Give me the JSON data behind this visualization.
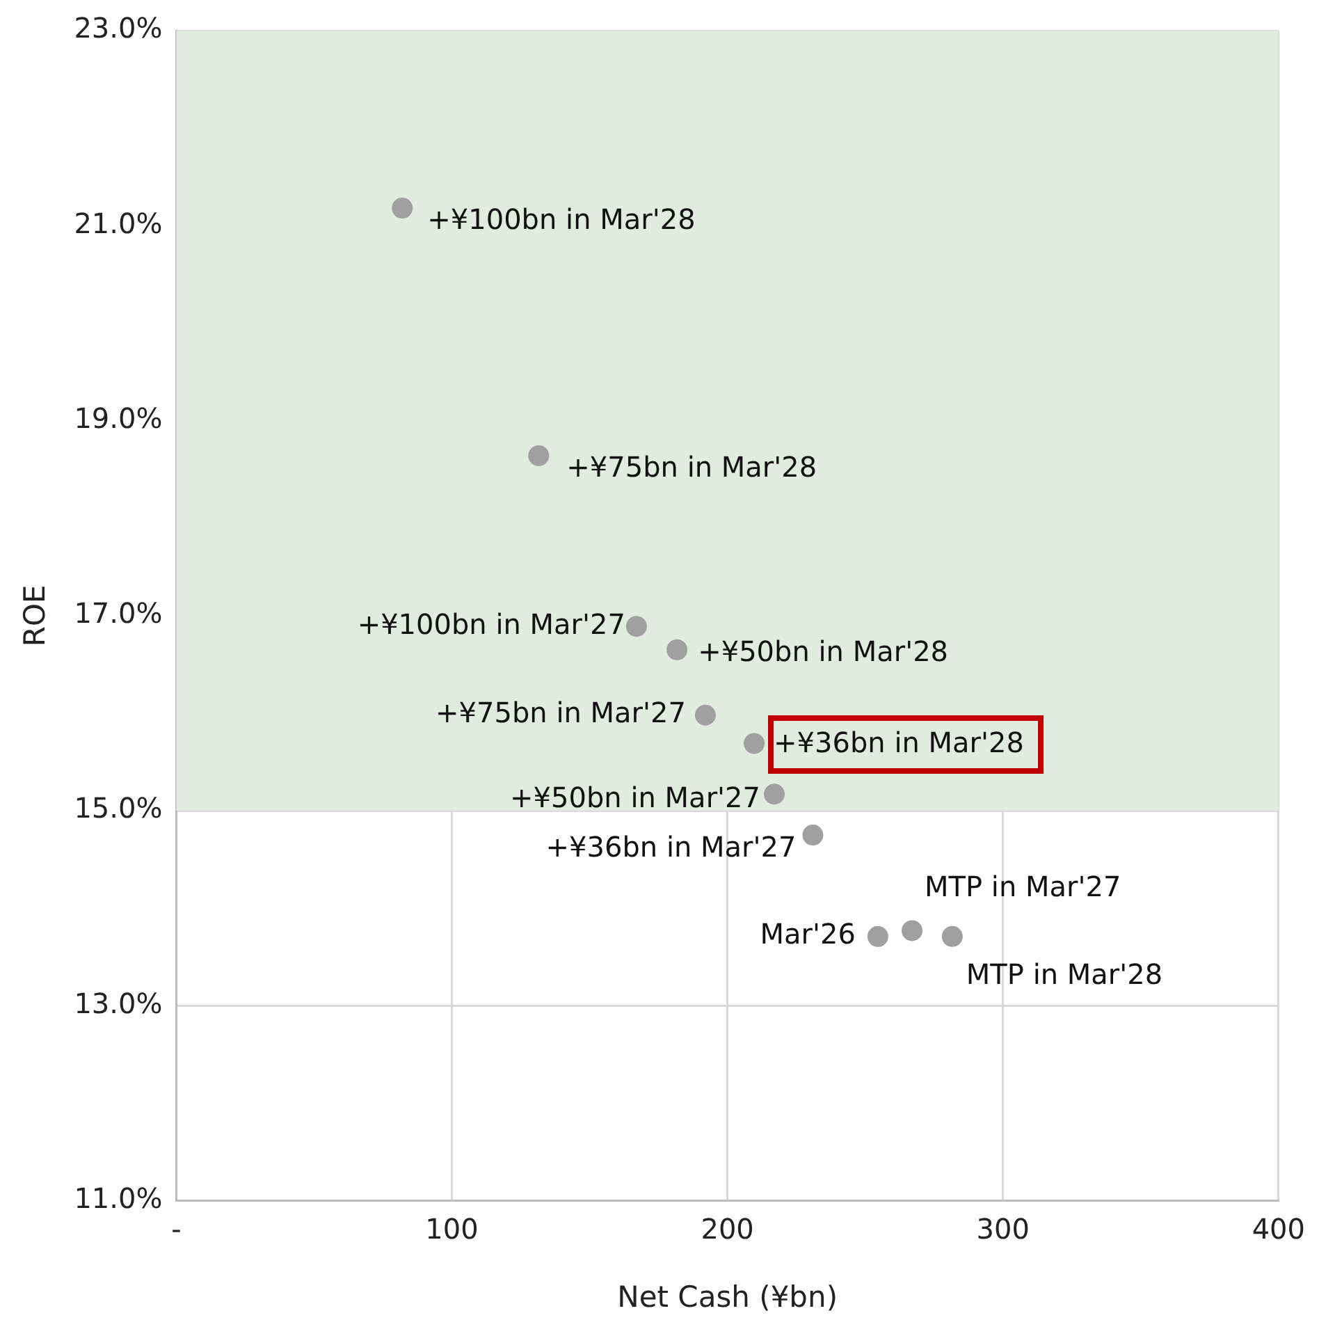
{
  "chart_data": {
    "type": "scatter",
    "xlabel": "Net Cash (¥bn)",
    "ylabel": "ROE",
    "x": [
      82,
      131.5,
      167,
      181.7,
      192,
      209.7,
      217,
      231,
      254.6,
      267,
      281.6
    ],
    "values": [
      21.18,
      18.64,
      16.89,
      16.65,
      15.98,
      15.69,
      15.17,
      14.75,
      13.71,
      13.77,
      13.71
    ],
    "color": "#a0a0a0",
    "marker": "circle",
    "xlim": [
      0,
      400
    ],
    "xticks": [
      {
        "value": 0,
        "label": "-"
      },
      100,
      200,
      300,
      400
    ],
    "ylim": [
      11,
      23
    ],
    "yticks": [
      {
        "value": 11,
        "label": "11.0%"
      },
      {
        "value": 13,
        "label": "13.0%"
      },
      {
        "value": 15,
        "label": "15.0%"
      },
      {
        "value": 17,
        "label": "17.0%"
      },
      {
        "value": 19,
        "label": "19.0%"
      },
      {
        "value": 21,
        "label": "21.0%"
      },
      {
        "value": 23,
        "label": "23.0%"
      }
    ],
    "grid": true,
    "legend": false,
    "bands": [
      {
        "axis": "y",
        "from": 15,
        "to": 23,
        "color": "#e2ebdf"
      }
    ],
    "annotations": [
      {
        "text": "+¥100bn in Mar'28",
        "x": 82,
        "y": 21.18
      },
      {
        "text": "+¥75bn in Mar'28",
        "x": 131.5,
        "y": 18.64
      },
      {
        "text": "+¥100bn in Mar'27",
        "x": 167,
        "y": 16.89
      },
      {
        "text": "+¥50bn in Mar'28",
        "x": 181.7,
        "y": 16.65
      },
      {
        "text": "+¥75bn in Mar'27",
        "x": 192,
        "y": 15.98
      },
      {
        "text": "+¥36bn in Mar'28",
        "x": 209.7,
        "y": 15.69
      },
      {
        "text": "+¥50bn in Mar'27",
        "x": 217,
        "y": 15.17
      },
      {
        "text": "+¥36bn in Mar'27",
        "x": 231,
        "y": 14.75
      },
      {
        "text": "Mar'26",
        "x": 254.6,
        "y": 13.71
      },
      {
        "text": "MTP in Mar'27",
        "x": 267,
        "y": 13.77
      },
      {
        "text": "MTP in Mar'28",
        "x": 281.6,
        "y": 13.71
      }
    ]
  }
}
